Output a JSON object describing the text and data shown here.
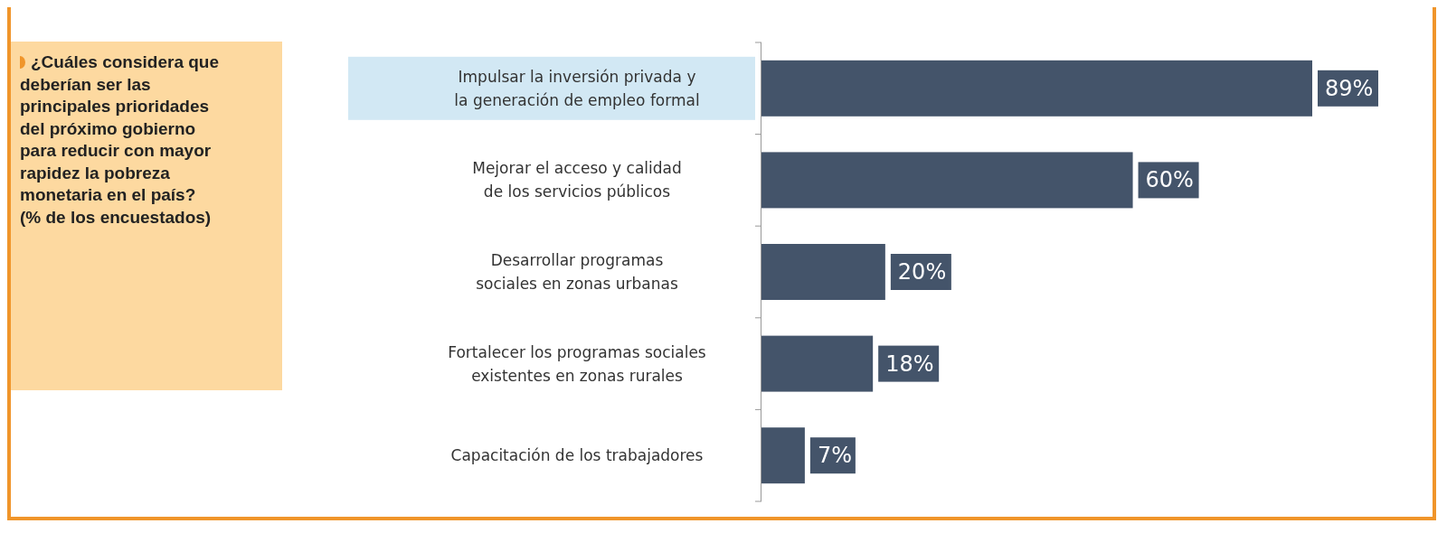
{
  "chart_data": {
    "type": "bar",
    "orientation": "horizontal",
    "title": "¿Cuáles considera que deberían ser las principales prioridades del próximo gobierno para reducir con mayor rapidez la pobreza monetaria en el país? (% de los encuestados)",
    "categories": [
      "Impulsar la inversión privada y la generación de empleo formal",
      "Mejorar el acceso y calidad de los servicios públicos",
      "Desarrollar programas sociales en zonas urbanas",
      "Fortalecer los programas sociales existentes en zonas rurales",
      "Capacitación de los trabajadores"
    ],
    "values": [
      89,
      60,
      20,
      18,
      7
    ],
    "color": "#44546a",
    "data_labels": true,
    "value_labels": [
      "89%",
      "60%",
      "20%",
      "18%",
      "7%"
    ]
  }
}
